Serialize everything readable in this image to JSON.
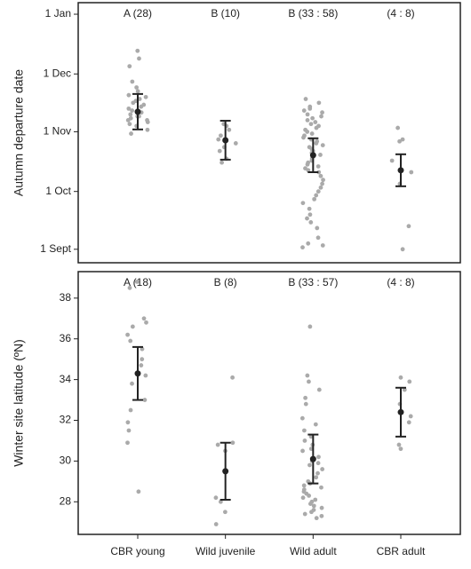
{
  "chart_data": [
    {
      "type": "strip",
      "y_label": "Autumn departure date",
      "ylim": [
        237,
        372
      ],
      "yticks": [
        {
          "value": 244,
          "label": "1 Sept"
        },
        {
          "value": 274,
          "label": "1 Oct"
        },
        {
          "value": 305,
          "label": "1 Nov"
        },
        {
          "value": 335,
          "label": "1 Dec"
        },
        {
          "value": 366,
          "label": "1 Jan"
        }
      ],
      "point_color": "#aaaaaa",
      "mean_color": "#222222",
      "groups": [
        {
          "annotation": "A (28)",
          "mean": 315.4,
          "error": 9.2,
          "points": [
            347,
            343,
            339,
            331,
            328,
            326,
            324,
            323,
            322,
            321,
            320,
            319,
            318,
            317,
            316,
            316,
            315,
            314,
            313,
            313,
            312,
            311,
            311,
            310,
            309,
            308,
            306,
            304
          ]
        },
        {
          "annotation": "B (10)",
          "mean": 300.6,
          "error": 10.1,
          "points": [
            309,
            308,
            306,
            303,
            301,
            299,
            297,
            295,
            291,
            289
          ]
        },
        {
          "annotation": "B (33 : 58)",
          "mean": 292.8,
          "error": 8.8,
          "points": [
            322,
            320,
            318,
            317,
            316,
            315,
            314,
            313,
            312,
            311,
            310,
            309,
            308,
            307,
            306,
            305,
            304,
            303,
            302,
            301,
            300,
            299,
            298,
            297,
            296,
            295,
            294,
            293,
            291,
            290,
            289,
            288,
            287,
            286,
            285,
            284,
            282,
            280,
            278,
            276,
            274,
            272,
            270,
            268,
            265,
            262,
            260,
            258,
            255,
            250,
            247,
            246,
            245
          ]
        },
        {
          "annotation": "(4 : 8)",
          "mean": 285.0,
          "error": 8.3,
          "points": [
            307,
            301,
            300,
            290,
            284,
            278,
            256,
            244
          ]
        }
      ]
    },
    {
      "type": "strip",
      "y_label": "Winter site latitude (ºN)",
      "ylim": [
        26.4,
        39.3
      ],
      "yticks": [
        28,
        30,
        32,
        34,
        36,
        38
      ],
      "categories": [
        "CBR young",
        "Wild juvenile",
        "Wild adult",
        "CBR adult"
      ],
      "point_color": "#aaaaaa",
      "mean_color": "#222222",
      "groups": [
        {
          "annotation": "A (18)",
          "mean": 34.3,
          "error": 1.3,
          "points": [
            38.8,
            38.5,
            37.0,
            36.8,
            36.6,
            36.2,
            35.9,
            35.5,
            35.0,
            34.7,
            34.2,
            33.8,
            33.0,
            32.5,
            31.9,
            31.5,
            30.9,
            28.5
          ]
        },
        {
          "annotation": "B (8)",
          "mean": 29.5,
          "error": 1.4,
          "points": [
            34.1,
            30.9,
            30.8,
            30.5,
            28.2,
            28.0,
            27.5,
            26.9
          ]
        },
        {
          "annotation": "B (33 : 57)",
          "mean": 30.1,
          "error": 1.2,
          "points": [
            36.6,
            34.2,
            33.9,
            33.5,
            33.1,
            32.8,
            32.1,
            31.8,
            31.5,
            31.2,
            31.0,
            30.8,
            30.6,
            30.5,
            30.2,
            30.0,
            29.9,
            29.8,
            29.6,
            29.4,
            29.2,
            29.0,
            28.9,
            28.8,
            28.7,
            28.6,
            28.5,
            28.4,
            28.3,
            28.2,
            28.1,
            28.0,
            27.9,
            27.8,
            27.7,
            27.6,
            27.5,
            27.4,
            27.3,
            27.2
          ]
        },
        {
          "annotation": "(4 : 8)",
          "mean": 32.4,
          "error": 1.2,
          "points": [
            34.1,
            33.9,
            33.5,
            32.8,
            32.2,
            31.9,
            30.8,
            30.6
          ]
        }
      ]
    }
  ]
}
